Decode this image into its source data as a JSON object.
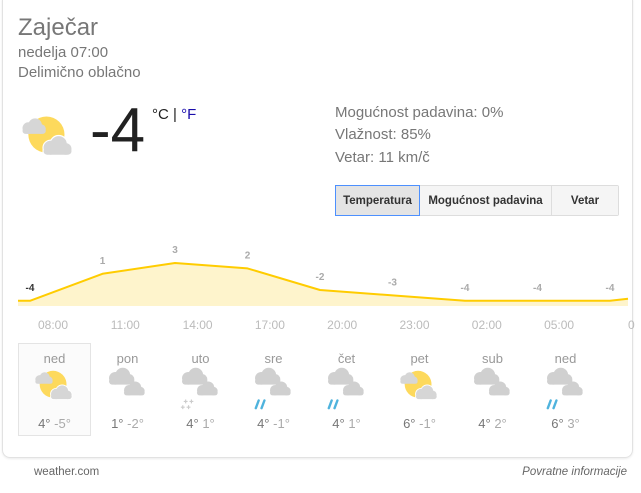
{
  "location": "Zaječar",
  "datetime": "nedelja 07:00",
  "condition": "Delimično oblačno",
  "current": {
    "icon": "partly-cloudy-icon",
    "temp": "-4",
    "unit_c": "°C",
    "separator": " | ",
    "unit_f": "°F"
  },
  "details": {
    "precip": "Mogućnost padavina: 0%",
    "humidity": "Vlažnost: 85%",
    "wind": "Vetar: 11 km/č"
  },
  "tabs": [
    {
      "label": "Temperatura",
      "selected": true
    },
    {
      "label": "Mogućnost padavina"
    },
    {
      "label": "Vetar"
    }
  ],
  "chart_data": {
    "type": "area",
    "x": [
      "08:00",
      "11:00",
      "14:00",
      "17:00",
      "20:00",
      "23:00",
      "02:00",
      "05:00",
      "0"
    ],
    "values": [
      -4,
      1,
      3,
      2,
      -2,
      -3,
      -4,
      -4,
      -4
    ],
    "labels": [
      "-4",
      "1",
      "3",
      "2",
      "-2",
      "-3",
      "-4",
      "-4",
      "-4"
    ],
    "line_color": "#ffcc00",
    "fill_color": "#fef4cc"
  },
  "forecast": [
    {
      "day": "ned",
      "icon": "partly-cloudy-icon",
      "hi": "4°",
      "lo": "-5°"
    },
    {
      "day": "pon",
      "icon": "cloudy-icon",
      "hi": "1°",
      "lo": "-2°"
    },
    {
      "day": "uto",
      "icon": "snow-icon",
      "hi": "4°",
      "lo": "1°"
    },
    {
      "day": "sre",
      "icon": "rain-icon",
      "hi": "4°",
      "lo": "-1°"
    },
    {
      "day": "čet",
      "icon": "rain-icon",
      "hi": "4°",
      "lo": "1°"
    },
    {
      "day": "pet",
      "icon": "partly-cloudy-icon",
      "hi": "6°",
      "lo": "-1°"
    },
    {
      "day": "sub",
      "icon": "cloudy-icon",
      "hi": "4°",
      "lo": "2°"
    },
    {
      "day": "ned",
      "icon": "rain-icon",
      "hi": "6°",
      "lo": "3°"
    }
  ],
  "footer": {
    "source": "weather.com",
    "feedback": "Povratne informacije"
  }
}
